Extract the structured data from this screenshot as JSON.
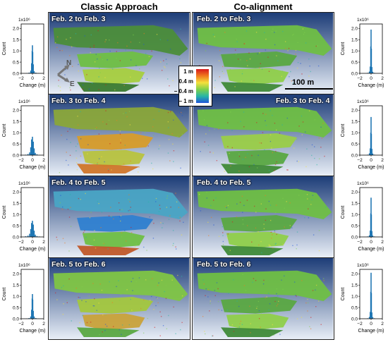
{
  "titles": {
    "classic": "Classic Approach",
    "coalign": "Co-alignment"
  },
  "panels": {
    "classic": [
      "Feb. 2 to Feb. 3",
      "Feb. 3 to Feb. 4",
      "Feb. 4 to Feb. 5",
      "Feb. 5 to Feb. 6"
    ],
    "coalign": [
      "Feb. 2 to Feb. 3",
      "Feb. 3 to Feb. 4",
      "Feb. 4 to Feb. 5",
      "Feb. 5 to Feb. 6"
    ]
  },
  "legend": {
    "labels": [
      "1 m",
      "0.4 m",
      "− 0.4 m",
      "− 1 m"
    ],
    "colors": [
      "#d7191c",
      "#f07a1e",
      "#f4e03c",
      "#7fd04a",
      "#27b6a5",
      "#1f54d8"
    ]
  },
  "scalebar": {
    "label": "100 m"
  },
  "compass": {
    "north": "N",
    "east": "E"
  },
  "chart_data": [
    {
      "type": "bar",
      "title": "",
      "xlabel": "Change (m)",
      "ylabel": "Count",
      "scale_note": "1x10⁶",
      "xticks": [
        "−2",
        "0",
        "2"
      ],
      "yticks": [
        "0.0",
        "0.5",
        "1.0",
        "1.5",
        "2.0"
      ],
      "xlim": [
        -2,
        2
      ],
      "ylim": [
        0,
        2.2
      ],
      "x": [
        -1.0,
        -0.6,
        -0.3,
        -0.15,
        -0.05,
        0.0,
        0.05,
        0.15,
        0.3,
        0.6,
        1.0
      ],
      "values": [
        0.01,
        0.03,
        0.12,
        0.45,
        1.0,
        1.25,
        0.95,
        0.4,
        0.1,
        0.03,
        0.01
      ]
    },
    {
      "type": "bar",
      "title": "",
      "xlabel": "Change (m)",
      "ylabel": "Count",
      "scale_note": "1x10⁶",
      "xticks": [
        "−2",
        "0",
        "2"
      ],
      "yticks": [
        "0.0",
        "0.5",
        "1.0",
        "1.5",
        "2.0"
      ],
      "xlim": [
        -2,
        2
      ],
      "ylim": [
        0,
        2.2
      ],
      "x": [
        -1.2,
        -0.8,
        -0.5,
        -0.3,
        -0.15,
        0.0,
        0.15,
        0.3,
        0.5,
        0.8,
        1.2
      ],
      "values": [
        0.02,
        0.05,
        0.12,
        0.35,
        0.7,
        0.82,
        0.6,
        0.3,
        0.1,
        0.04,
        0.01
      ]
    },
    {
      "type": "bar",
      "title": "",
      "xlabel": "Change (m)",
      "ylabel": "Count",
      "scale_note": "1x10⁶",
      "xticks": [
        "−2",
        "0",
        "2"
      ],
      "yticks": [
        "0.0",
        "0.5",
        "1.0",
        "1.5",
        "2.0"
      ],
      "xlim": [
        -2,
        2
      ],
      "ylim": [
        0,
        2.2
      ],
      "x": [
        -1.2,
        -0.8,
        -0.5,
        -0.3,
        -0.15,
        0.0,
        0.15,
        0.3,
        0.5,
        0.8,
        1.2
      ],
      "values": [
        0.03,
        0.06,
        0.14,
        0.35,
        0.62,
        0.72,
        0.55,
        0.28,
        0.1,
        0.04,
        0.02
      ]
    },
    {
      "type": "bar",
      "title": "",
      "xlabel": "Change (m)",
      "ylabel": "Count",
      "scale_note": "1x10⁶",
      "xticks": [
        "−2",
        "0",
        "2"
      ],
      "yticks": [
        "0.0",
        "0.5",
        "1.0",
        "1.5",
        "2.0"
      ],
      "xlim": [
        -2,
        2
      ],
      "ylim": [
        0,
        2.2
      ],
      "x": [
        -1.0,
        -0.6,
        -0.3,
        -0.15,
        -0.05,
        0.0,
        0.05,
        0.15,
        0.3,
        0.6,
        1.0
      ],
      "values": [
        0.01,
        0.03,
        0.1,
        0.4,
        0.9,
        1.1,
        0.85,
        0.35,
        0.1,
        0.03,
        0.01
      ]
    },
    {
      "type": "bar",
      "title": "",
      "xlabel": "Change (m)",
      "ylabel": "Count",
      "scale_note": "1x10⁶",
      "xticks": [
        "−2",
        "0",
        "2"
      ],
      "yticks": [
        "0.0",
        "0.5",
        "1.0",
        "1.5",
        "2.0"
      ],
      "xlim": [
        -2,
        2
      ],
      "ylim": [
        0,
        2.2
      ],
      "x": [
        -0.6,
        -0.3,
        -0.15,
        -0.05,
        0.0,
        0.05,
        0.15,
        0.3,
        0.6
      ],
      "values": [
        0.02,
        0.08,
        0.3,
        1.2,
        1.95,
        1.1,
        0.28,
        0.07,
        0.02
      ]
    },
    {
      "type": "bar",
      "title": "",
      "xlabel": "Change (m)",
      "ylabel": "Count",
      "scale_note": "1x10⁶",
      "xticks": [
        "−2",
        "0",
        "2"
      ],
      "yticks": [
        "0.0",
        "0.5",
        "1.0",
        "1.5",
        "2.0"
      ],
      "xlim": [
        -2,
        2
      ],
      "ylim": [
        0,
        2.2
      ],
      "x": [
        -0.6,
        -0.3,
        -0.15,
        -0.05,
        0.0,
        0.05,
        0.15,
        0.3,
        0.6
      ],
      "values": [
        0.02,
        0.08,
        0.3,
        1.0,
        1.7,
        0.95,
        0.28,
        0.07,
        0.02
      ]
    },
    {
      "type": "bar",
      "title": "",
      "xlabel": "Change (m)",
      "ylabel": "Count",
      "scale_note": "1x10⁶",
      "xticks": [
        "−2",
        "0",
        "2"
      ],
      "yticks": [
        "0.0",
        "0.5",
        "1.0",
        "1.5",
        "2.0"
      ],
      "xlim": [
        -2,
        2
      ],
      "ylim": [
        0,
        2.2
      ],
      "x": [
        -0.6,
        -0.3,
        -0.15,
        -0.05,
        0.0,
        0.05,
        0.15,
        0.3,
        0.6
      ],
      "values": [
        0.02,
        0.07,
        0.28,
        1.05,
        1.75,
        1.0,
        0.26,
        0.06,
        0.02
      ]
    },
    {
      "type": "bar",
      "title": "",
      "xlabel": "Change (m)",
      "ylabel": "Count",
      "scale_note": "1x10⁶",
      "xticks": [
        "−2",
        "0",
        "2"
      ],
      "yticks": [
        "0.0",
        "0.5",
        "1.0",
        "1.5",
        "2.0"
      ],
      "xlim": [
        -2,
        2
      ],
      "ylim": [
        0,
        2.2
      ],
      "x": [
        -0.6,
        -0.3,
        -0.15,
        -0.05,
        0.0,
        0.05,
        0.15,
        0.3,
        0.6
      ],
      "values": [
        0.02,
        0.08,
        0.3,
        1.2,
        2.05,
        1.15,
        0.28,
        0.07,
        0.02
      ]
    }
  ]
}
